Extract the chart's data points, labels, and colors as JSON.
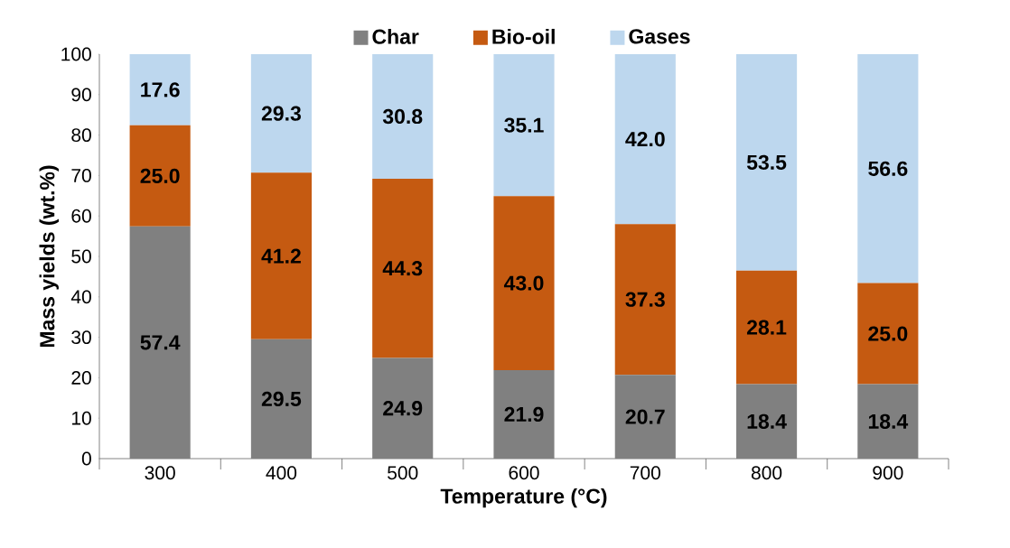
{
  "chart_data": {
    "type": "bar",
    "stacked": true,
    "xlabel": "Temperature (°C)",
    "ylabel": "Mass yields (wt.%)",
    "categories": [
      "300",
      "400",
      "500",
      "600",
      "700",
      "800",
      "900"
    ],
    "series": [
      {
        "name": "Char",
        "color": "#808080",
        "values": [
          57.4,
          29.5,
          24.9,
          21.9,
          20.7,
          18.4,
          18.4
        ],
        "value_labels": [
          "57.4",
          "29.5",
          "24.9",
          "21.9",
          "20.7",
          "18.4",
          "18.4"
        ]
      },
      {
        "name": "Bio-oil",
        "color": "#c55a11",
        "values": [
          25.0,
          41.2,
          44.3,
          43.0,
          37.3,
          28.1,
          25.0
        ],
        "value_labels": [
          "25.0",
          "41.2",
          "44.3",
          "43.0",
          "37.3",
          "28.1",
          "25.0"
        ]
      },
      {
        "name": "Gases",
        "color": "#bdd7ee",
        "values": [
          17.6,
          29.3,
          30.8,
          35.1,
          42.0,
          53.5,
          56.6
        ],
        "value_labels": [
          "17.6",
          "29.3",
          "30.8",
          "35.1",
          "42.0",
          "53.5",
          "56.6"
        ]
      }
    ],
    "ylim": [
      0,
      100
    ],
    "yticks": [
      0,
      10,
      20,
      30,
      40,
      50,
      60,
      70,
      80,
      90,
      100
    ],
    "grid": false,
    "legend": "top"
  }
}
